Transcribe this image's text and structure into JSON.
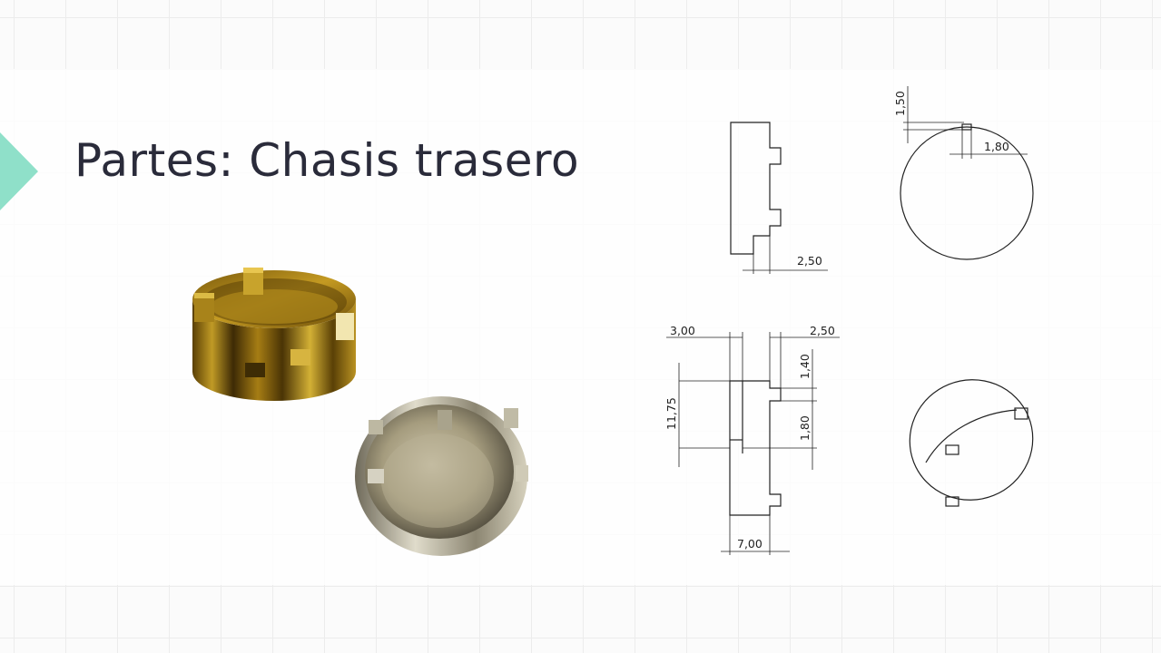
{
  "slide": {
    "title": "Partes: Chasis trasero",
    "accent_color": "#8fe0c9",
    "title_color": "#2a2b3a"
  },
  "photos": {
    "gold_part": "gold-chassis-3d-render",
    "silver_part": "silver-chassis-photo"
  },
  "dimensions": {
    "top_height": "1,50",
    "top_width": "1,80",
    "side_tab_depth": "2,50",
    "front_left": "3,00",
    "front_right": "2,50",
    "front_tab_height": "1,40",
    "front_height": "11,75",
    "front_tab_gap": "1,80",
    "front_bottom": "7,00"
  }
}
